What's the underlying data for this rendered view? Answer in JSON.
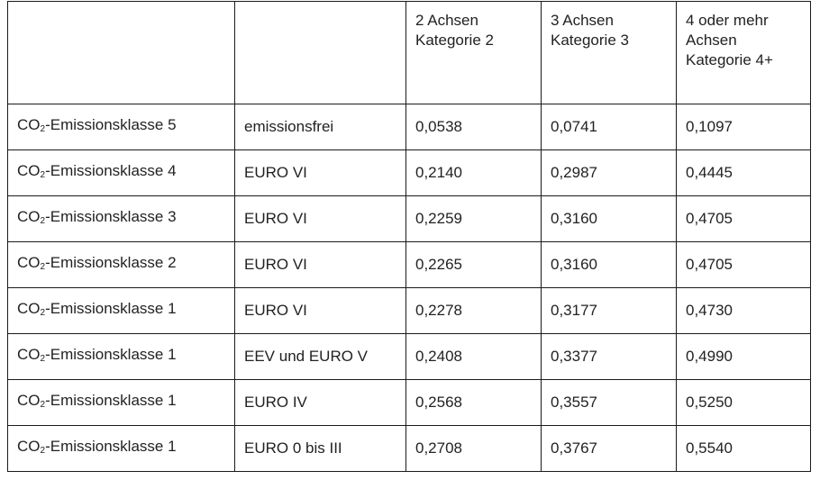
{
  "table": {
    "header": {
      "col1": "",
      "col2": "",
      "col3": [
        "2 Achsen",
        "Kategorie 2"
      ],
      "col4": [
        "3 Achsen",
        "Kategorie 3"
      ],
      "col5": [
        "4 oder mehr",
        "Achsen",
        "Kategorie 4+"
      ]
    },
    "rows": [
      {
        "klasse_prefix": "CO",
        "klasse_sub": "2",
        "klasse_suffix": "-Emissionsklasse 5",
        "norm": "emissionsfrei",
        "k2": "0,0538",
        "k3": "0,0741",
        "k4": "0,1097"
      },
      {
        "klasse_prefix": "CO",
        "klasse_sub": "2",
        "klasse_suffix": "-Emissionsklasse 4",
        "norm": "EURO VI",
        "k2": "0,2140",
        "k3": "0,2987",
        "k4": "0,4445"
      },
      {
        "klasse_prefix": "CO",
        "klasse_sub": "2",
        "klasse_suffix": "-Emissionsklasse 3",
        "norm": "EURO VI",
        "k2": "0,2259",
        "k3": "0,3160",
        "k4": "0,4705"
      },
      {
        "klasse_prefix": "CO",
        "klasse_sub": "2",
        "klasse_suffix": "-Emissionsklasse 2",
        "norm": "EURO VI",
        "k2": "0,2265",
        "k3": "0,3160",
        "k4": "0,4705"
      },
      {
        "klasse_prefix": "CO",
        "klasse_sub": "2",
        "klasse_suffix": "-Emissionsklasse 1",
        "norm": "EURO VI",
        "k2": "0,2278",
        "k3": "0,3177",
        "k4": "0,4730"
      },
      {
        "klasse_prefix": "CO",
        "klasse_sub": "2",
        "klasse_suffix": "-Emissionsklasse 1",
        "norm": "EEV und EURO V",
        "k2": "0,2408",
        "k3": "0,3377",
        "k4": "0,4990"
      },
      {
        "klasse_prefix": "CO",
        "klasse_sub": "2",
        "klasse_suffix": "-Emissionsklasse 1",
        "norm": "EURO IV",
        "k2": "0,2568",
        "k3": "0,3557",
        "k4": "0,5250"
      },
      {
        "klasse_prefix": "CO",
        "klasse_sub": "2",
        "klasse_suffix": "-Emissionsklasse 1",
        "norm": "EURO 0 bis III",
        "k2": "0,2708",
        "k3": "0,3767",
        "k4": "0,5540"
      }
    ]
  }
}
